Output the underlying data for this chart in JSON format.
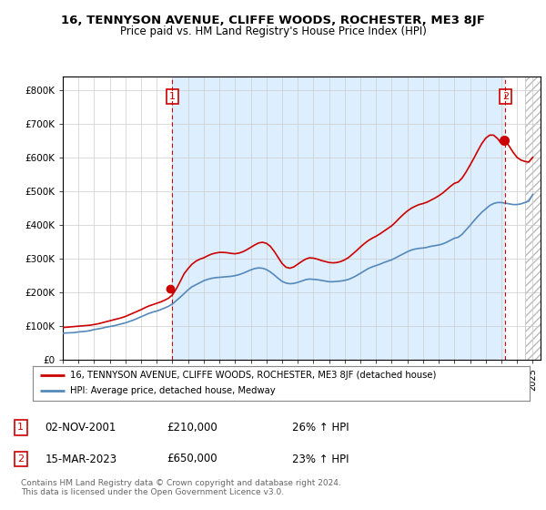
{
  "title": "16, TENNYSON AVENUE, CLIFFE WOODS, ROCHESTER, ME3 8JF",
  "subtitle": "Price paid vs. HM Land Registry's House Price Index (HPI)",
  "legend_line1": "16, TENNYSON AVENUE, CLIFFE WOODS, ROCHESTER, ME3 8JF (detached house)",
  "legend_line2": "HPI: Average price, detached house, Medway",
  "annotation1_label": "1",
  "annotation1_date": "02-NOV-2001",
  "annotation1_price": "£210,000",
  "annotation1_hpi": "26% ↑ HPI",
  "annotation2_label": "2",
  "annotation2_date": "15-MAR-2023",
  "annotation2_price": "£650,000",
  "annotation2_hpi": "23% ↑ HPI",
  "footer": "Contains HM Land Registry data © Crown copyright and database right 2024.\nThis data is licensed under the Open Government Licence v3.0.",
  "red_color": "#cc0000",
  "blue_color": "#5588bb",
  "fill_color": "#ddeeff",
  "background": "#ffffff",
  "grid_color": "#cccccc",
  "ylim": [
    0,
    840000
  ],
  "yticks": [
    0,
    100000,
    200000,
    300000,
    400000,
    500000,
    600000,
    700000,
    800000
  ],
  "ytick_labels": [
    "£0",
    "£100K",
    "£200K",
    "£300K",
    "£400K",
    "£500K",
    "£600K",
    "£700K",
    "£800K"
  ],
  "xmin": 1995.0,
  "xmax": 2025.5,
  "vline1_year": 2002.0,
  "vline2_year": 2023.25,
  "marker1_year": 2001.83,
  "marker1_value": 210000,
  "marker2_year": 2023.2,
  "marker2_value": 650000,
  "hatch_start": 2024.5,
  "hpi_data": [
    [
      1995.0,
      78000
    ],
    [
      1995.25,
      79000
    ],
    [
      1995.5,
      79500
    ],
    [
      1995.75,
      80000
    ],
    [
      1996.0,
      82000
    ],
    [
      1996.25,
      83000
    ],
    [
      1996.5,
      84000
    ],
    [
      1996.75,
      86000
    ],
    [
      1997.0,
      89000
    ],
    [
      1997.25,
      91000
    ],
    [
      1997.5,
      93000
    ],
    [
      1997.75,
      96000
    ],
    [
      1998.0,
      98000
    ],
    [
      1998.25,
      100000
    ],
    [
      1998.5,
      103000
    ],
    [
      1998.75,
      106000
    ],
    [
      1999.0,
      109000
    ],
    [
      1999.25,
      113000
    ],
    [
      1999.5,
      117000
    ],
    [
      1999.75,
      122000
    ],
    [
      2000.0,
      127000
    ],
    [
      2000.25,
      132000
    ],
    [
      2000.5,
      137000
    ],
    [
      2000.75,
      141000
    ],
    [
      2001.0,
      144000
    ],
    [
      2001.25,
      148000
    ],
    [
      2001.5,
      153000
    ],
    [
      2001.75,
      158000
    ],
    [
      2002.0,
      165000
    ],
    [
      2002.25,
      175000
    ],
    [
      2002.5,
      185000
    ],
    [
      2002.75,
      196000
    ],
    [
      2003.0,
      207000
    ],
    [
      2003.25,
      216000
    ],
    [
      2003.5,
      222000
    ],
    [
      2003.75,
      228000
    ],
    [
      2004.0,
      234000
    ],
    [
      2004.25,
      238000
    ],
    [
      2004.5,
      241000
    ],
    [
      2004.75,
      243000
    ],
    [
      2005.0,
      244000
    ],
    [
      2005.25,
      245000
    ],
    [
      2005.5,
      246000
    ],
    [
      2005.75,
      247000
    ],
    [
      2006.0,
      249000
    ],
    [
      2006.25,
      252000
    ],
    [
      2006.5,
      256000
    ],
    [
      2006.75,
      261000
    ],
    [
      2007.0,
      266000
    ],
    [
      2007.25,
      270000
    ],
    [
      2007.5,
      272000
    ],
    [
      2007.75,
      271000
    ],
    [
      2008.0,
      267000
    ],
    [
      2008.25,
      260000
    ],
    [
      2008.5,
      251000
    ],
    [
      2008.75,
      241000
    ],
    [
      2009.0,
      232000
    ],
    [
      2009.25,
      227000
    ],
    [
      2009.5,
      225000
    ],
    [
      2009.75,
      226000
    ],
    [
      2010.0,
      229000
    ],
    [
      2010.25,
      233000
    ],
    [
      2010.5,
      237000
    ],
    [
      2010.75,
      239000
    ],
    [
      2011.0,
      238000
    ],
    [
      2011.25,
      237000
    ],
    [
      2011.5,
      235000
    ],
    [
      2011.75,
      233000
    ],
    [
      2012.0,
      231000
    ],
    [
      2012.25,
      231000
    ],
    [
      2012.5,
      232000
    ],
    [
      2012.75,
      233000
    ],
    [
      2013.0,
      235000
    ],
    [
      2013.25,
      238000
    ],
    [
      2013.5,
      243000
    ],
    [
      2013.75,
      249000
    ],
    [
      2014.0,
      256000
    ],
    [
      2014.25,
      263000
    ],
    [
      2014.5,
      270000
    ],
    [
      2014.75,
      275000
    ],
    [
      2015.0,
      279000
    ],
    [
      2015.25,
      283000
    ],
    [
      2015.5,
      288000
    ],
    [
      2015.75,
      292000
    ],
    [
      2016.0,
      296000
    ],
    [
      2016.25,
      302000
    ],
    [
      2016.5,
      308000
    ],
    [
      2016.75,
      314000
    ],
    [
      2017.0,
      320000
    ],
    [
      2017.25,
      325000
    ],
    [
      2017.5,
      328000
    ],
    [
      2017.75,
      330000
    ],
    [
      2018.0,
      331000
    ],
    [
      2018.25,
      333000
    ],
    [
      2018.5,
      336000
    ],
    [
      2018.75,
      338000
    ],
    [
      2019.0,
      340000
    ],
    [
      2019.25,
      343000
    ],
    [
      2019.5,
      348000
    ],
    [
      2019.75,
      354000
    ],
    [
      2020.0,
      360000
    ],
    [
      2020.25,
      363000
    ],
    [
      2020.5,
      372000
    ],
    [
      2020.75,
      385000
    ],
    [
      2021.0,
      398000
    ],
    [
      2021.25,
      412000
    ],
    [
      2021.5,
      425000
    ],
    [
      2021.75,
      437000
    ],
    [
      2022.0,
      447000
    ],
    [
      2022.25,
      457000
    ],
    [
      2022.5,
      463000
    ],
    [
      2022.75,
      466000
    ],
    [
      2023.0,
      466000
    ],
    [
      2023.25,
      464000
    ],
    [
      2023.5,
      462000
    ],
    [
      2023.75,
      460000
    ],
    [
      2024.0,
      460000
    ],
    [
      2024.25,
      462000
    ],
    [
      2024.5,
      466000
    ],
    [
      2024.75,
      470000
    ],
    [
      2025.0,
      490000
    ]
  ],
  "red_data": [
    [
      1995.0,
      95000
    ],
    [
      1995.25,
      96000
    ],
    [
      1995.5,
      97000
    ],
    [
      1995.75,
      98000
    ],
    [
      1996.0,
      99000
    ],
    [
      1996.25,
      100000
    ],
    [
      1996.5,
      101000
    ],
    [
      1996.75,
      102000
    ],
    [
      1997.0,
      104000
    ],
    [
      1997.25,
      106000
    ],
    [
      1997.5,
      109000
    ],
    [
      1997.75,
      112000
    ],
    [
      1998.0,
      115000
    ],
    [
      1998.25,
      118000
    ],
    [
      1998.5,
      121000
    ],
    [
      1998.75,
      124000
    ],
    [
      1999.0,
      128000
    ],
    [
      1999.25,
      133000
    ],
    [
      1999.5,
      138000
    ],
    [
      1999.75,
      143000
    ],
    [
      2000.0,
      148000
    ],
    [
      2000.25,
      154000
    ],
    [
      2000.5,
      159000
    ],
    [
      2000.75,
      163000
    ],
    [
      2001.0,
      167000
    ],
    [
      2001.25,
      171000
    ],
    [
      2001.5,
      176000
    ],
    [
      2001.75,
      182000
    ],
    [
      2002.0,
      192000
    ],
    [
      2002.25,
      210000
    ],
    [
      2002.5,
      232000
    ],
    [
      2002.75,
      255000
    ],
    [
      2003.0,
      270000
    ],
    [
      2003.25,
      283000
    ],
    [
      2003.5,
      292000
    ],
    [
      2003.75,
      298000
    ],
    [
      2004.0,
      302000
    ],
    [
      2004.25,
      308000
    ],
    [
      2004.5,
      313000
    ],
    [
      2004.75,
      316000
    ],
    [
      2005.0,
      318000
    ],
    [
      2005.25,
      318000
    ],
    [
      2005.5,
      317000
    ],
    [
      2005.75,
      315000
    ],
    [
      2006.0,
      314000
    ],
    [
      2006.25,
      316000
    ],
    [
      2006.5,
      320000
    ],
    [
      2006.75,
      326000
    ],
    [
      2007.0,
      333000
    ],
    [
      2007.25,
      340000
    ],
    [
      2007.5,
      346000
    ],
    [
      2007.75,
      348000
    ],
    [
      2008.0,
      345000
    ],
    [
      2008.25,
      336000
    ],
    [
      2008.5,
      321000
    ],
    [
      2008.75,
      303000
    ],
    [
      2009.0,
      285000
    ],
    [
      2009.25,
      274000
    ],
    [
      2009.5,
      271000
    ],
    [
      2009.75,
      275000
    ],
    [
      2010.0,
      283000
    ],
    [
      2010.25,
      291000
    ],
    [
      2010.5,
      298000
    ],
    [
      2010.75,
      302000
    ],
    [
      2011.0,
      301000
    ],
    [
      2011.25,
      298000
    ],
    [
      2011.5,
      294000
    ],
    [
      2011.75,
      291000
    ],
    [
      2012.0,
      288000
    ],
    [
      2012.25,
      287000
    ],
    [
      2012.5,
      288000
    ],
    [
      2012.75,
      291000
    ],
    [
      2013.0,
      296000
    ],
    [
      2013.25,
      303000
    ],
    [
      2013.5,
      313000
    ],
    [
      2013.75,
      323000
    ],
    [
      2014.0,
      334000
    ],
    [
      2014.25,
      344000
    ],
    [
      2014.5,
      353000
    ],
    [
      2014.75,
      360000
    ],
    [
      2015.0,
      366000
    ],
    [
      2015.25,
      373000
    ],
    [
      2015.5,
      381000
    ],
    [
      2015.75,
      389000
    ],
    [
      2016.0,
      397000
    ],
    [
      2016.25,
      408000
    ],
    [
      2016.5,
      420000
    ],
    [
      2016.75,
      431000
    ],
    [
      2017.0,
      441000
    ],
    [
      2017.25,
      449000
    ],
    [
      2017.5,
      455000
    ],
    [
      2017.75,
      460000
    ],
    [
      2018.0,
      463000
    ],
    [
      2018.25,
      467000
    ],
    [
      2018.5,
      473000
    ],
    [
      2018.75,
      479000
    ],
    [
      2019.0,
      486000
    ],
    [
      2019.25,
      494000
    ],
    [
      2019.5,
      504000
    ],
    [
      2019.75,
      514000
    ],
    [
      2020.0,
      523000
    ],
    [
      2020.25,
      527000
    ],
    [
      2020.5,
      539000
    ],
    [
      2020.75,
      557000
    ],
    [
      2021.0,
      577000
    ],
    [
      2021.25,
      598000
    ],
    [
      2021.5,
      620000
    ],
    [
      2021.75,
      641000
    ],
    [
      2022.0,
      657000
    ],
    [
      2022.25,
      666000
    ],
    [
      2022.5,
      666000
    ],
    [
      2022.75,
      656000
    ],
    [
      2023.0,
      641000
    ],
    [
      2023.25,
      650000
    ],
    [
      2023.5,
      633000
    ],
    [
      2023.75,
      615000
    ],
    [
      2024.0,
      600000
    ],
    [
      2024.25,
      592000
    ],
    [
      2024.5,
      588000
    ],
    [
      2024.75,
      586000
    ],
    [
      2025.0,
      600000
    ]
  ]
}
